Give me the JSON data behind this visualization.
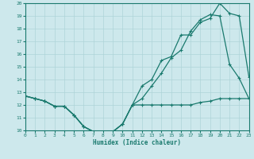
{
  "xlabel": "Humidex (Indice chaleur)",
  "xlim": [
    0,
    23
  ],
  "ylim": [
    10,
    20
  ],
  "yticks": [
    10,
    11,
    12,
    13,
    14,
    15,
    16,
    17,
    18,
    19,
    20
  ],
  "xticks": [
    0,
    1,
    2,
    3,
    4,
    5,
    6,
    7,
    8,
    9,
    10,
    11,
    12,
    13,
    14,
    15,
    16,
    17,
    18,
    19,
    20,
    21,
    22,
    23
  ],
  "bg_color": "#cde8ec",
  "grid_color": "#aed4d8",
  "line_color": "#1a7a6e",
  "line1_x": [
    0,
    1,
    2,
    3,
    4,
    5,
    6,
    7,
    8,
    9,
    10,
    11,
    12,
    13,
    14,
    15,
    16,
    17,
    18,
    19,
    20,
    21,
    22,
    23
  ],
  "line1_y": [
    12.7,
    12.5,
    12.3,
    11.9,
    11.9,
    11.2,
    10.3,
    9.9,
    9.8,
    9.9,
    10.5,
    12.0,
    12.0,
    12.0,
    12.0,
    12.0,
    12.0,
    12.0,
    12.2,
    12.3,
    12.5,
    12.5,
    12.5,
    12.5
  ],
  "line2_x": [
    0,
    1,
    2,
    3,
    4,
    5,
    6,
    7,
    8,
    9,
    10,
    11,
    12,
    13,
    14,
    15,
    16,
    17,
    18,
    19,
    20,
    21,
    22,
    23
  ],
  "line2_y": [
    12.7,
    12.5,
    12.3,
    11.9,
    11.9,
    11.2,
    10.3,
    9.9,
    9.8,
    9.9,
    10.5,
    12.0,
    13.5,
    14.0,
    15.5,
    15.8,
    17.5,
    17.5,
    18.5,
    18.8,
    20.0,
    19.2,
    19.0,
    14.2
  ],
  "line3_x": [
    0,
    1,
    2,
    3,
    4,
    5,
    6,
    7,
    8,
    9,
    10,
    11,
    12,
    13,
    14,
    15,
    16,
    17,
    18,
    19,
    20,
    21,
    22,
    23
  ],
  "line3_y": [
    12.7,
    12.5,
    12.3,
    11.9,
    11.9,
    11.2,
    10.3,
    9.9,
    9.8,
    9.9,
    10.5,
    12.0,
    12.5,
    13.5,
    14.5,
    15.7,
    16.3,
    17.8,
    18.7,
    19.1,
    19.0,
    15.2,
    14.1,
    12.5
  ]
}
